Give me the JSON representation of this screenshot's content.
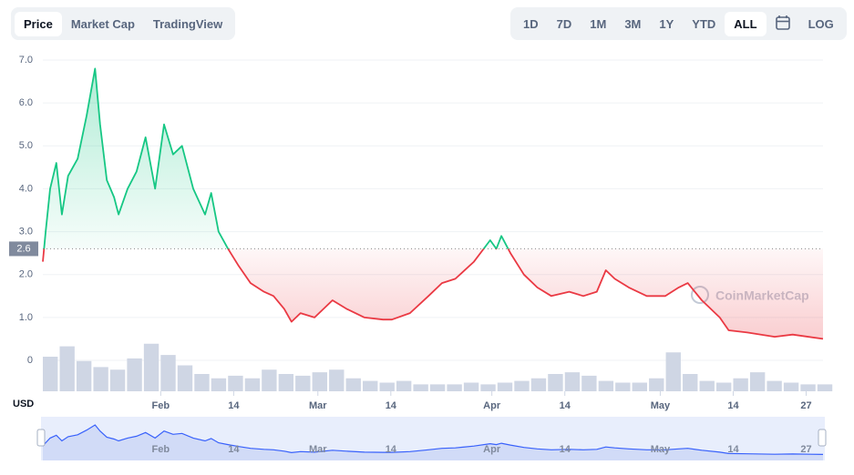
{
  "tabs": [
    "Price",
    "Market Cap",
    "TradingView"
  ],
  "ranges": [
    "1D",
    "7D",
    "1M",
    "3M",
    "1Y",
    "YTD",
    "ALL"
  ],
  "log_button": "LOG",
  "currency": "USD",
  "watermark": "CoinMarketCap",
  "chart_data": {
    "type": "line",
    "x": [
      0,
      0.5,
      1.3,
      2.4,
      3.4,
      4.5,
      6.2,
      7.8,
      9.3,
      10.2,
      11.4,
      12.7,
      13.5,
      15.1,
      16.7,
      18.3,
      20,
      21.6,
      23.2,
      24.8,
      26.8,
      28.9,
      30,
      31.3,
      33,
      34.9,
      37,
      39.4,
      41.1,
      43,
      44.3,
      45.9,
      48.4,
      51.6,
      54.1,
      57.3,
      60.6,
      62.2,
      65.4,
      68.7,
      71.1,
      73.5,
      76.8,
      79.7,
      80.8,
      81.7,
      83.3,
      85.7,
      88.1,
      90.6,
      93.8,
      96.3,
      98.7,
      100.3,
      101.9,
      104.4,
      107.6,
      110.9,
      113.3,
      114.9,
      117.4,
      120.6,
      122.2,
      125.5,
      130.4,
      133.6,
      139
    ],
    "series": [
      {
        "name": "Price",
        "values": [
          2.3,
          3.0,
          4.0,
          4.6,
          3.4,
          4.3,
          4.7,
          5.7,
          6.8,
          5.5,
          4.2,
          3.8,
          3.4,
          4.0,
          4.4,
          5.2,
          4.0,
          5.5,
          4.8,
          5.0,
          4.0,
          3.4,
          3.9,
          3.0,
          2.6,
          2.2,
          1.8,
          1.6,
          1.5,
          1.2,
          0.9,
          1.1,
          1.0,
          1.4,
          1.2,
          1.0,
          0.95,
          0.95,
          1.1,
          1.5,
          1.8,
          1.9,
          2.3,
          2.8,
          2.6,
          2.9,
          2.5,
          2.0,
          1.7,
          1.5,
          1.6,
          1.5,
          1.6,
          2.1,
          1.9,
          1.7,
          1.5,
          1.5,
          1.7,
          1.8,
          1.4,
          1.0,
          0.7,
          0.65,
          0.55,
          0.6,
          0.5
        ]
      }
    ],
    "up_color": "#16c784",
    "down_color": "#ea3943",
    "baseline": 2.6,
    "xlim": [
      0,
      139
    ],
    "xticks": [
      {
        "value": 21,
        "label": "Feb"
      },
      {
        "value": 34,
        "label": "14"
      },
      {
        "value": 49,
        "label": "Mar"
      },
      {
        "value": 62,
        "label": "14"
      },
      {
        "value": 80,
        "label": "Apr"
      },
      {
        "value": 93,
        "label": "14"
      },
      {
        "value": 110,
        "label": "May"
      },
      {
        "value": 123,
        "label": "14"
      },
      {
        "value": 136,
        "label": "27"
      }
    ],
    "ylim": [
      0,
      7
    ],
    "yticks": [
      0,
      {
        "value": 1,
        "label": "1.0"
      },
      {
        "value": 2,
        "label": "2.0"
      },
      {
        "value": 3,
        "label": "3.0"
      },
      {
        "value": 4,
        "label": "4.0"
      },
      {
        "value": 5,
        "label": "5.0"
      },
      {
        "value": 6,
        "label": "6.0"
      },
      {
        "value": 7,
        "label": "7.0"
      }
    ],
    "grid": true,
    "volume": {
      "color": "#cfd6e4",
      "x": [
        0,
        3,
        6,
        9,
        12,
        15,
        18,
        21,
        24,
        27,
        30,
        33,
        36,
        39,
        42,
        45,
        48,
        51,
        54,
        57,
        60,
        63,
        66,
        69,
        72,
        75,
        78,
        81,
        84,
        87,
        90,
        93,
        96,
        99,
        102,
        105,
        108,
        111,
        114,
        117,
        120,
        123,
        126,
        129,
        132,
        135,
        138
      ],
      "values": [
        40,
        52,
        35,
        28,
        25,
        38,
        55,
        42,
        30,
        20,
        15,
        18,
        15,
        25,
        20,
        18,
        22,
        25,
        15,
        12,
        10,
        12,
        8,
        8,
        8,
        10,
        8,
        10,
        12,
        15,
        20,
        22,
        18,
        12,
        10,
        10,
        15,
        45,
        20,
        12,
        10,
        15,
        22,
        12,
        10,
        8,
        8
      ]
    }
  }
}
